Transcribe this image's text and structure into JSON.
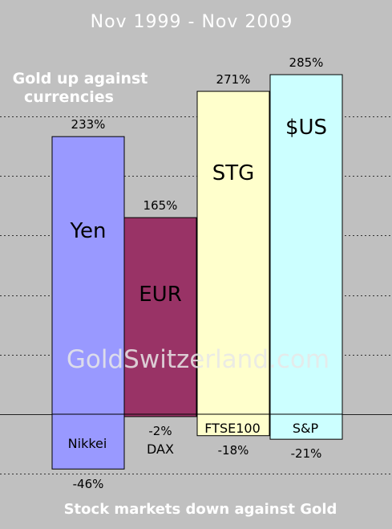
{
  "title": "Nov 1999 - Nov  2009",
  "annotation_top": [
    "Gold up against",
    "currencies"
  ],
  "annotation_bottom": "Stock markets down against Gold",
  "watermark": "GoldSwitzerland.com",
  "chart_data": {
    "type": "bar",
    "title": "Nov 1999 - Nov  2009",
    "grid": true,
    "ylim": [
      -60,
      300
    ],
    "series": [
      {
        "group": "currencies",
        "categories": [
          "Yen",
          "EUR",
          "STG",
          "$US"
        ],
        "values": [
          233,
          165,
          271,
          285
        ],
        "labels": [
          "233%",
          "165%",
          "271%",
          "285%"
        ],
        "colors": [
          "#9999ff",
          "#993366",
          "#ffffcc",
          "#ccffff"
        ]
      },
      {
        "group": "stock markets",
        "categories": [
          "Nikkei",
          "DAX",
          "FTSE100",
          "S&P"
        ],
        "values": [
          -46,
          -2,
          -18,
          -21
        ],
        "labels": [
          "-46%",
          "-2%",
          "-18%",
          "-21%"
        ],
        "colors": [
          "#9999ff",
          "#993366",
          "#ffffcc",
          "#ccffff"
        ]
      }
    ]
  }
}
